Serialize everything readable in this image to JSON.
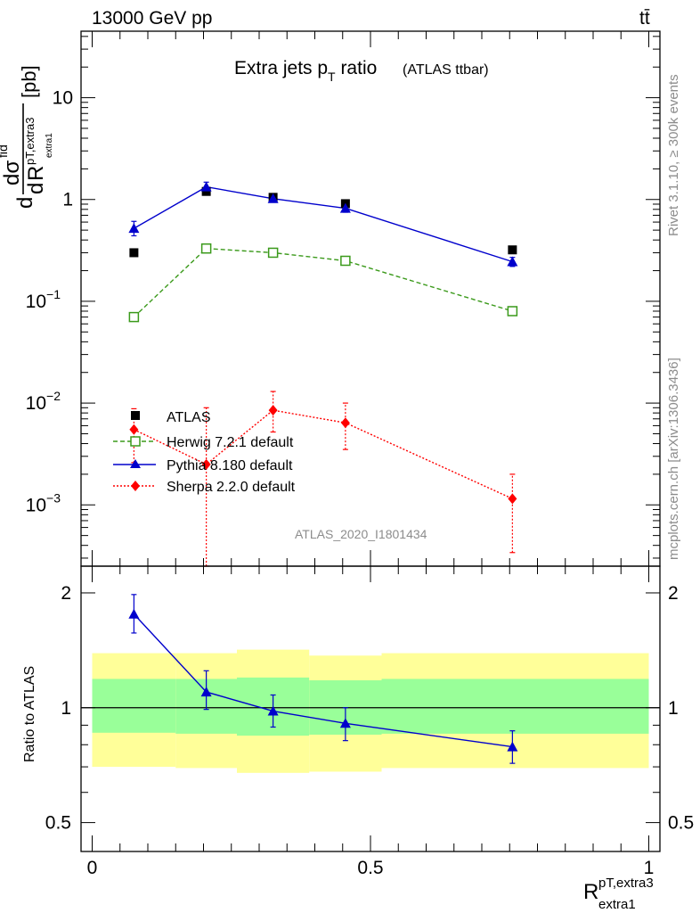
{
  "header": {
    "left": "13000 GeV pp",
    "right": "tt̄"
  },
  "side_labels": {
    "rivet": "Rivet 3.1.10, ≥ 300k events",
    "mcplots": "mcplots.cern.ch [arXiv:1306.3436]"
  },
  "chart_data": [
    {
      "type": "scatter",
      "title": "Extra jets p",
      "title_sub": "T",
      "title_rest": " ratio",
      "title_tag": "(ATLAS ttbar)",
      "watermark": "ATLAS_2020_I1801434",
      "ylabel": {
        "d1": "d",
        "dsigma": "dσ",
        "fid": "fid",
        "d2": "d",
        "R": "R",
        "pt": "pT,extra3",
        "extra1": "extra1",
        "unit": "[pb]"
      },
      "yscale": "log",
      "ylim": [
        0.00025,
        45
      ],
      "xlim": [
        -0.02,
        1.02
      ],
      "y_ticks": [
        {
          "value": 0.001,
          "base": "10",
          "exp": "−3"
        },
        {
          "value": 0.01,
          "base": "10",
          "exp": "−2"
        },
        {
          "value": 0.1,
          "base": "10",
          "exp": "−1"
        },
        {
          "value": 1,
          "label": "1"
        },
        {
          "value": 10,
          "label": "10"
        }
      ],
      "legend_position": "bottom-left",
      "series": [
        {
          "name": "ATLAS",
          "color": "#000000",
          "marker": "square",
          "line": "none",
          "x": [
            0.075,
            0.205,
            0.325,
            0.455,
            0.755
          ],
          "y": [
            0.3,
            1.2,
            1.05,
            0.91,
            0.32
          ]
        },
        {
          "name": "Herwig 7.2.1 default",
          "color": "#3b9a1b",
          "marker": "open-square",
          "line": "dashed",
          "x": [
            0.075,
            0.205,
            0.325,
            0.455,
            0.755
          ],
          "y": [
            0.07,
            0.33,
            0.3,
            0.25,
            0.08
          ]
        },
        {
          "name": "Pythia 8.180 default",
          "color": "#0000cc",
          "marker": "triangle",
          "line": "solid",
          "x": [
            0.075,
            0.205,
            0.325,
            0.455,
            0.755
          ],
          "y": [
            0.52,
            1.33,
            1.02,
            0.82,
            0.245
          ],
          "err_lo": [
            0.44,
            1.2,
            0.97,
            0.75,
            0.22
          ],
          "err_hi": [
            0.61,
            1.48,
            1.09,
            0.89,
            0.27
          ]
        },
        {
          "name": "Sherpa 2.2.0 default",
          "color": "#ff0000",
          "marker": "diamond",
          "line": "dotted",
          "x": [
            0.075,
            0.205,
            0.325,
            0.455,
            0.755
          ],
          "y": [
            0.0055,
            0.0025,
            0.0085,
            0.0064,
            0.00115
          ],
          "err_lo": [
            0.0026,
            0.00025,
            0.0052,
            0.0035,
            0.00034
          ],
          "err_hi": [
            0.0088,
            0.009,
            0.013,
            0.01,
            0.002
          ]
        }
      ]
    },
    {
      "type": "scatter",
      "ylabel": "Ratio to ATLAS",
      "yscale": "log",
      "ylim": [
        0.42,
        2.35
      ],
      "xlim": [
        -0.02,
        1.02
      ],
      "y_ticks": [
        {
          "value": 0.5,
          "label": "0.5"
        },
        {
          "value": 1,
          "label": "1"
        },
        {
          "value": 2,
          "label": "2"
        }
      ],
      "x_ticks": [
        {
          "value": 0,
          "label": "0"
        },
        {
          "value": 0.5,
          "label": "0.5"
        },
        {
          "value": 1,
          "label": "1"
        }
      ],
      "xlabel": {
        "main": "R",
        "sup": "pT,extra3",
        "sub": "extra1"
      },
      "bands": {
        "x_edges": [
          0,
          0.15,
          0.26,
          0.39,
          0.52,
          1.0
        ],
        "outer_lo": [
          0.7,
          0.695,
          0.675,
          0.68,
          0.695
        ],
        "outer_hi": [
          1.39,
          1.39,
          1.42,
          1.37,
          1.39
        ],
        "inner_lo": [
          0.86,
          0.855,
          0.845,
          0.85,
          0.855
        ],
        "inner_hi": [
          1.19,
          1.19,
          1.2,
          1.18,
          1.19
        ],
        "outer_color": "#ffff99",
        "inner_color": "#99ff99"
      },
      "series": [
        {
          "name": "Pythia 8.180 default",
          "color": "#0000cc",
          "x": [
            0.075,
            0.205,
            0.325,
            0.455,
            0.755
          ],
          "y": [
            1.76,
            1.1,
            0.98,
            0.91,
            0.79
          ],
          "err_lo": [
            1.57,
            0.99,
            0.89,
            0.82,
            0.715
          ],
          "err_hi": [
            1.98,
            1.25,
            1.08,
            1.0,
            0.87
          ]
        }
      ]
    }
  ]
}
